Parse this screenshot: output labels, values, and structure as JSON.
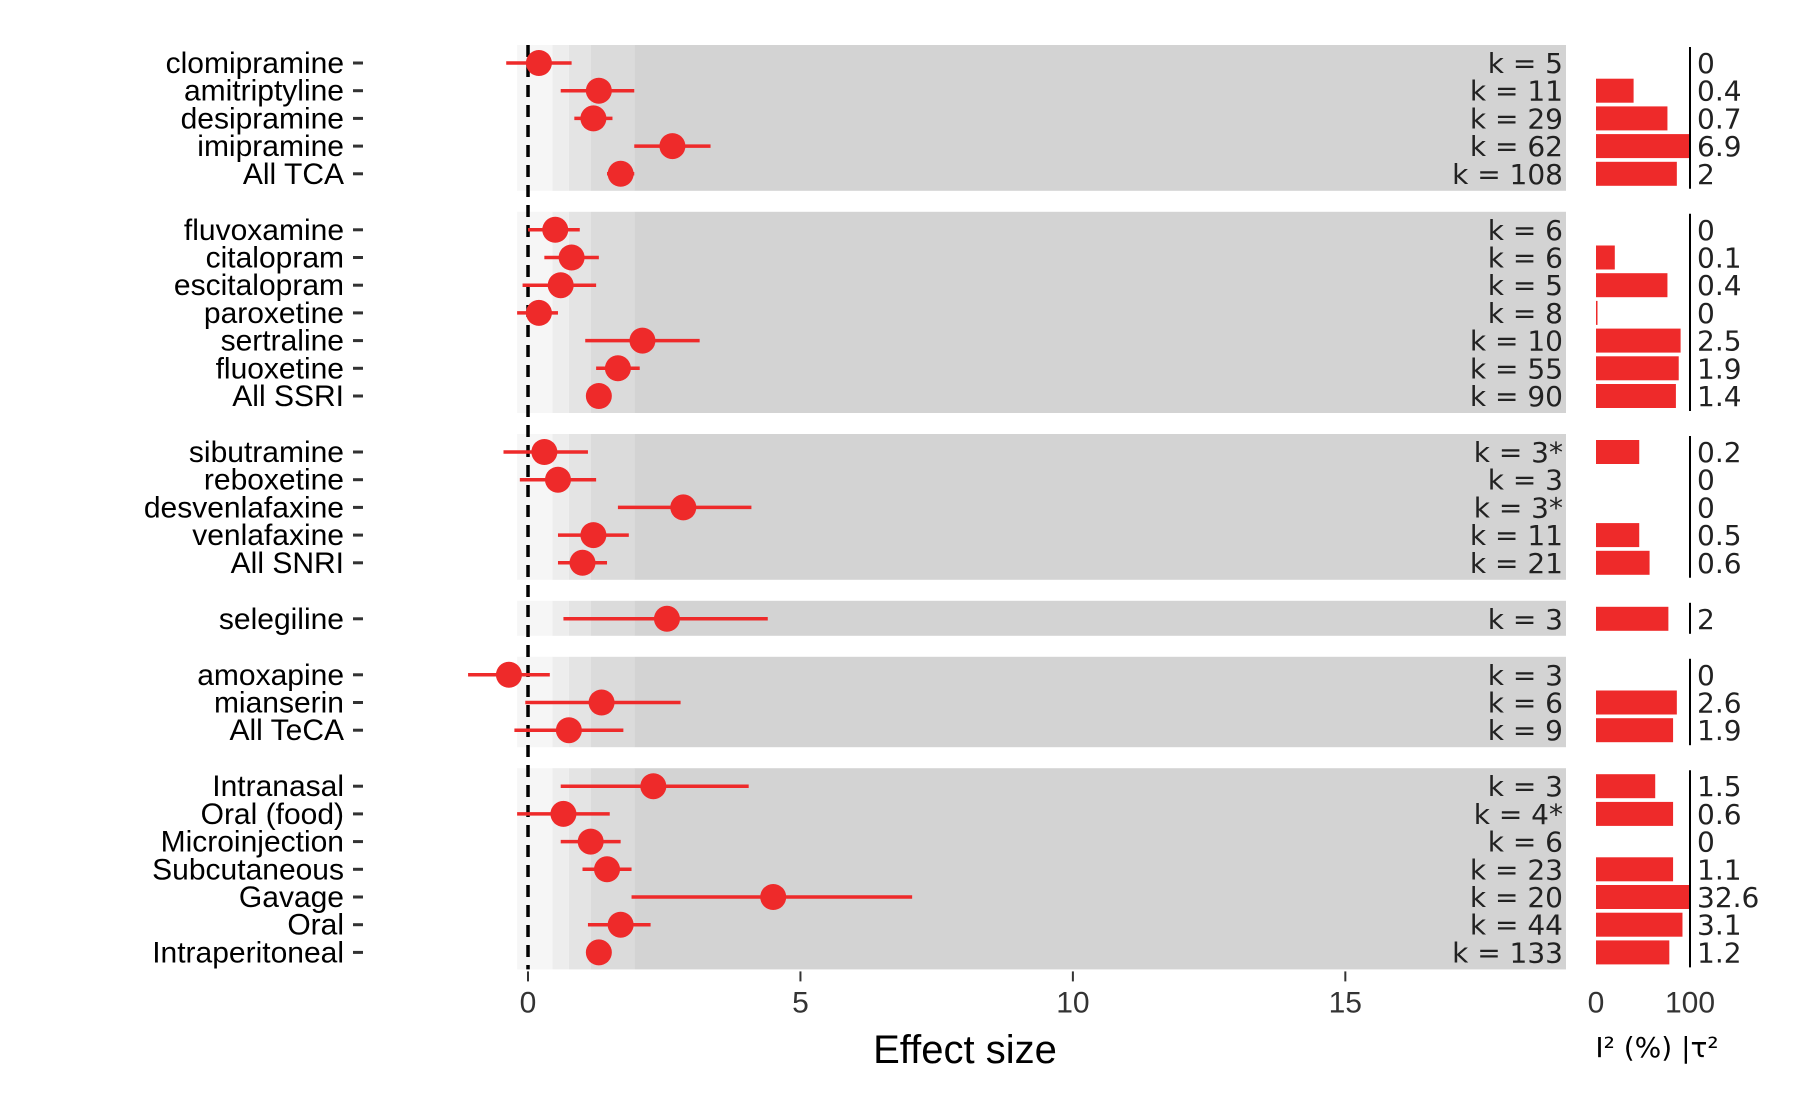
{
  "chart_data": {
    "type": "forest",
    "xlabel": "Effect size",
    "xlim": [
      -2.9,
      19.05
    ],
    "xticks": [
      0,
      5,
      10,
      15
    ],
    "i2_label": "I² (%) |τ²",
    "i2_ticks": [
      0,
      100
    ],
    "colors": {
      "point": "#ee2a2a",
      "panel": "#d3d3d3",
      "zero_line": "#000000"
    },
    "groups": [
      {
        "rows": [
          {
            "label": "clomipramine",
            "est": 0.2,
            "lo": -0.4,
            "hi": 0.8,
            "k": "k = 5",
            "i2": 0,
            "tau2": "0"
          },
          {
            "label": "amitriptyline",
            "est": 1.3,
            "lo": 0.6,
            "hi": 1.95,
            "k": "k = 11",
            "i2": 40,
            "tau2": "0.4"
          },
          {
            "label": "desipramine",
            "est": 1.2,
            "lo": 0.85,
            "hi": 1.55,
            "k": "k = 29",
            "i2": 76,
            "tau2": "0.7"
          },
          {
            "label": "imipramine",
            "est": 2.65,
            "lo": 1.95,
            "hi": 3.35,
            "k": "k = 62",
            "i2": 99,
            "tau2": "6.9"
          },
          {
            "label": "All TCA",
            "est": 1.7,
            "lo": 1.45,
            "hi": 1.95,
            "k": "k = 108",
            "i2": 86,
            "tau2": "2"
          }
        ]
      },
      {
        "rows": [
          {
            "label": "fluvoxamine",
            "est": 0.5,
            "lo": 0.0,
            "hi": 0.95,
            "k": "k = 6",
            "i2": 0,
            "tau2": "0"
          },
          {
            "label": "citalopram",
            "est": 0.8,
            "lo": 0.3,
            "hi": 1.3,
            "k": "k = 6",
            "i2": 20,
            "tau2": "0.1"
          },
          {
            "label": "escitalopram",
            "est": 0.6,
            "lo": -0.1,
            "hi": 1.25,
            "k": "k = 5",
            "i2": 76,
            "tau2": "0.4"
          },
          {
            "label": "paroxetine",
            "est": 0.2,
            "lo": -0.2,
            "hi": 0.55,
            "k": "k = 8",
            "i2": 1,
            "tau2": "0"
          },
          {
            "label": "sertraline",
            "est": 2.1,
            "lo": 1.05,
            "hi": 3.15,
            "k": "k = 10",
            "i2": 90,
            "tau2": "2.5"
          },
          {
            "label": "fluoxetine",
            "est": 1.65,
            "lo": 1.25,
            "hi": 2.05,
            "k": "k = 55",
            "i2": 88,
            "tau2": "1.9"
          },
          {
            "label": "All SSRI",
            "est": 1.3,
            "lo": 1.1,
            "hi": 1.5,
            "k": "k = 90",
            "i2": 85,
            "tau2": "1.4"
          }
        ]
      },
      {
        "rows": [
          {
            "label": "sibutramine",
            "est": 0.3,
            "lo": -0.45,
            "hi": 1.1,
            "k": "k = 3*",
            "i2": 46,
            "tau2": "0.2"
          },
          {
            "label": "reboxetine",
            "est": 0.55,
            "lo": -0.15,
            "hi": 1.25,
            "k": "k = 3",
            "i2": 0,
            "tau2": "0"
          },
          {
            "label": "desvenlafaxine",
            "est": 2.85,
            "lo": 1.65,
            "hi": 4.1,
            "k": "k = 3*",
            "i2": 0,
            "tau2": "0"
          },
          {
            "label": "venlafaxine",
            "est": 1.2,
            "lo": 0.55,
            "hi": 1.85,
            "k": "k = 11",
            "i2": 46,
            "tau2": "0.5"
          },
          {
            "label": "All SNRI",
            "est": 1.0,
            "lo": 0.55,
            "hi": 1.45,
            "k": "k = 21",
            "i2": 57,
            "tau2": "0.6"
          }
        ]
      },
      {
        "rows": [
          {
            "label": "selegiline",
            "est": 2.55,
            "lo": 0.65,
            "hi": 4.4,
            "k": "k = 3",
            "i2": 77,
            "tau2": "2"
          }
        ]
      },
      {
        "rows": [
          {
            "label": "amoxapine",
            "est": -0.35,
            "lo": -1.1,
            "hi": 0.4,
            "k": "k = 3",
            "i2": 0,
            "tau2": "0"
          },
          {
            "label": "mianserin",
            "est": 1.35,
            "lo": -0.05,
            "hi": 2.8,
            "k": "k = 6",
            "i2": 86,
            "tau2": "2.6"
          },
          {
            "label": "All TeCA",
            "est": 0.75,
            "lo": -0.25,
            "hi": 1.75,
            "k": "k = 9",
            "i2": 82,
            "tau2": "1.9"
          }
        ]
      },
      {
        "rows": [
          {
            "label": "Intranasal",
            "est": 2.3,
            "lo": 0.6,
            "hi": 4.05,
            "k": "k = 3",
            "i2": 63,
            "tau2": "1.5"
          },
          {
            "label": "Oral (food)",
            "est": 0.65,
            "lo": -0.2,
            "hi": 1.5,
            "k": "k = 4*",
            "i2": 82,
            "tau2": "0.6"
          },
          {
            "label": "Microinjection",
            "est": 1.15,
            "lo": 0.6,
            "hi": 1.7,
            "k": "k = 6",
            "i2": 0,
            "tau2": "0"
          },
          {
            "label": "Subcutaneous",
            "est": 1.45,
            "lo": 1.0,
            "hi": 1.9,
            "k": "k = 23",
            "i2": 82,
            "tau2": "1.1"
          },
          {
            "label": "Gavage",
            "est": 4.5,
            "lo": 1.9,
            "hi": 7.05,
            "k": "k = 20",
            "i2": 100,
            "tau2": "32.6"
          },
          {
            "label": "Oral",
            "est": 1.7,
            "lo": 1.1,
            "hi": 2.25,
            "k": "k = 44",
            "i2": 92,
            "tau2": "3.1"
          },
          {
            "label": "Intraperitoneal",
            "est": 1.3,
            "lo": 1.1,
            "hi": 1.5,
            "k": "k = 133",
            "i2": 78,
            "tau2": "1.2"
          }
        ]
      }
    ]
  }
}
